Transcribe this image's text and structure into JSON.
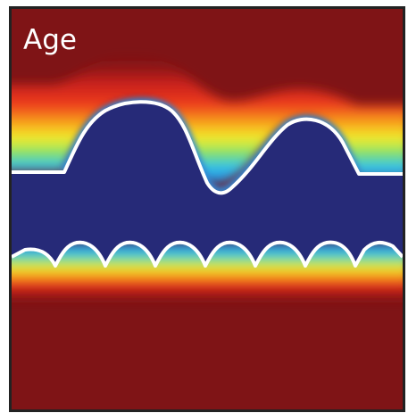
{
  "panel": {
    "title": "Age"
  },
  "colormap": {
    "name": "jet",
    "stops": [
      "#262a78",
      "#1f44a8",
      "#2f8fe0",
      "#2ec4ee",
      "#7ddf6a",
      "#f3ee2a",
      "#f7a21c",
      "#e8261b",
      "#8b1414"
    ]
  },
  "colors": {
    "background": "#7f1416",
    "solid_region": "#262a78",
    "interface_line": "#ffffff",
    "frame": "#222222"
  }
}
